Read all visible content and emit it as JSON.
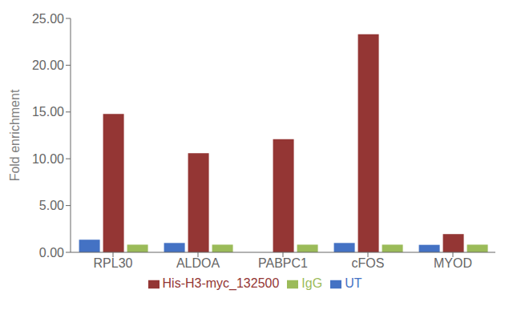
{
  "chart_data": {
    "type": "bar",
    "categories": [
      "RPL30",
      "ALDOA",
      "PABPC1",
      "cFOS",
      "MYOD"
    ],
    "series": [
      {
        "name": "UT",
        "color": "#4472C4",
        "values": [
          1.35,
          1.0,
          0.0,
          1.0,
          0.8
        ]
      },
      {
        "name": "His-H3-myc_132500",
        "color": "#943634",
        "values": [
          14.8,
          10.6,
          12.1,
          23.3,
          1.95
        ]
      },
      {
        "name": "IgG",
        "color": "#9BBB59",
        "values": [
          0.82,
          0.82,
          0.82,
          0.82,
          0.82
        ]
      }
    ],
    "ylabel": "Fold enrichment",
    "ylim": [
      0,
      25
    ],
    "yticks": [
      {
        "value": 0,
        "label": "0.00"
      },
      {
        "value": 5,
        "label": "5.00"
      },
      {
        "value": 10,
        "label": "10.00"
      },
      {
        "value": 15,
        "label": "15.00"
      },
      {
        "value": 20,
        "label": "20.00"
      },
      {
        "value": 25,
        "label": "25.00"
      }
    ],
    "grid": false,
    "legend": "bottom"
  }
}
